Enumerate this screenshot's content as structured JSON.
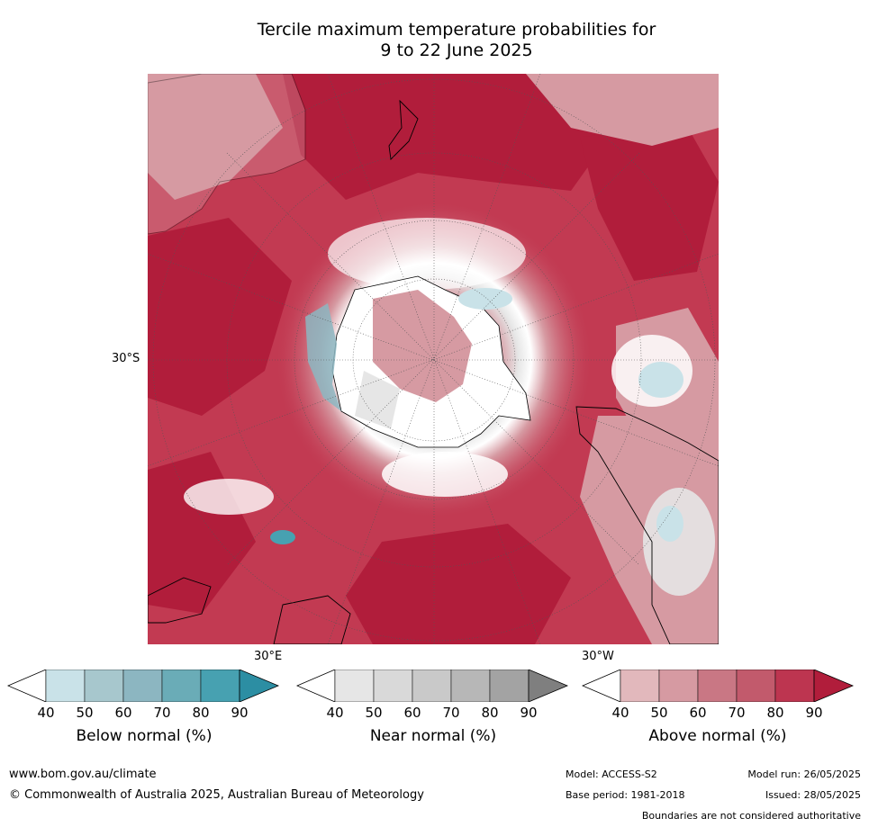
{
  "title_line1": "Tercile maximum temperature probabilities for",
  "title_line2": "9 to 22 June 2025",
  "map": {
    "lat_label": "30°S",
    "lon_label_east": "30°E",
    "lon_label_west": "30°W"
  },
  "legend": {
    "ticks": [
      "40",
      "50",
      "60",
      "70",
      "80",
      "90"
    ],
    "below": {
      "title": "Below normal (%)",
      "colors": [
        "#ffffff",
        "#c9e2e8",
        "#a7c7cd",
        "#8cb6c1",
        "#6aacb7",
        "#47a1b1",
        "#2c8ea3"
      ]
    },
    "near": {
      "title": "Near normal (%)",
      "colors": [
        "#ffffff",
        "#e6e6e6",
        "#d9d9d9",
        "#c9c9c9",
        "#b7b7b7",
        "#a3a3a3",
        "#7f7f7f"
      ]
    },
    "above": {
      "title": "Above normal (%)",
      "colors": [
        "#ffffff",
        "#e2b8bc",
        "#d69aa2",
        "#c97784",
        "#c25a6c",
        "#bd3550",
        "#b11d3b"
      ]
    }
  },
  "footer": {
    "url": "www.bom.gov.au/climate",
    "copyright": "© Commonwealth of Australia 2025, Australian Bureau of Meteorology",
    "model": "Model: ACCESS-S2",
    "base_period": "Base period: 1981-2018",
    "model_run": "Model run: 26/05/2025",
    "issued": "Issued: 28/05/2025",
    "disclaimer": "Boundaries are not considered authoritative"
  }
}
